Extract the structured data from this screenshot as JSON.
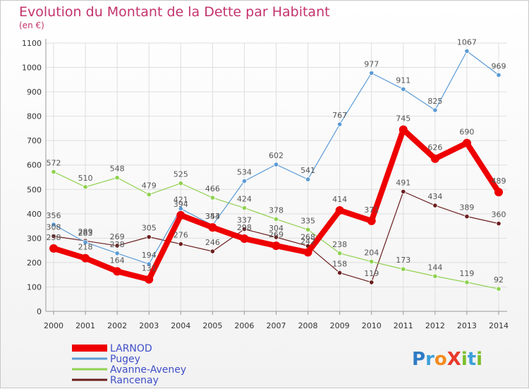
{
  "chart_data": {
    "type": "line",
    "title": "Evolution du Montant de la Dette par Habitant",
    "subtitle": "(en €)",
    "categories": [
      "2000",
      "2001",
      "2002",
      "2003",
      "2004",
      "2005",
      "2006",
      "2007",
      "2008",
      "2009",
      "2010",
      "2011",
      "2012",
      "2013",
      "2014"
    ],
    "ylim": [
      0,
      1100
    ],
    "yticks": [
      0,
      100,
      200,
      300,
      400,
      500,
      600,
      700,
      800,
      900,
      1000,
      1100
    ],
    "grid": true,
    "legend_position": "bottom-left",
    "series": [
      {
        "name": "LARNOD",
        "color": "#ee0000",
        "values": [
          258,
          218,
          164,
          131,
          394,
          344,
          298,
          269,
          242,
          414,
          371,
          745,
          626,
          690,
          489
        ]
      },
      {
        "name": "Pugey",
        "color": "#5b9bd5",
        "values": [
          356,
          283,
          238,
          194,
          421,
          353,
          534,
          602,
          541,
          767,
          977,
          911,
          825,
          1067,
          969
        ]
      },
      {
        "name": "Avanne-Aveney",
        "color": "#8fd14f",
        "values": [
          572,
          510,
          548,
          479,
          525,
          466,
          424,
          378,
          335,
          238,
          204,
          173,
          144,
          119,
          92
        ]
      },
      {
        "name": "Rancenay",
        "color": "#6b1f1f",
        "values": [
          308,
          289,
          269,
          305,
          276,
          246,
          337,
          304,
          268,
          158,
          119,
          491,
          434,
          389,
          360
        ]
      }
    ]
  },
  "logo": {
    "text": "ProXiti",
    "letters": [
      "P",
      "r",
      "o",
      "X",
      "i",
      "t",
      "i"
    ],
    "colors": [
      "#2e7bc4",
      "#3da0da",
      "#f28c1e",
      "#e8392a",
      "#7cbf2a",
      "#3da0da",
      "#7cbf2a"
    ]
  }
}
